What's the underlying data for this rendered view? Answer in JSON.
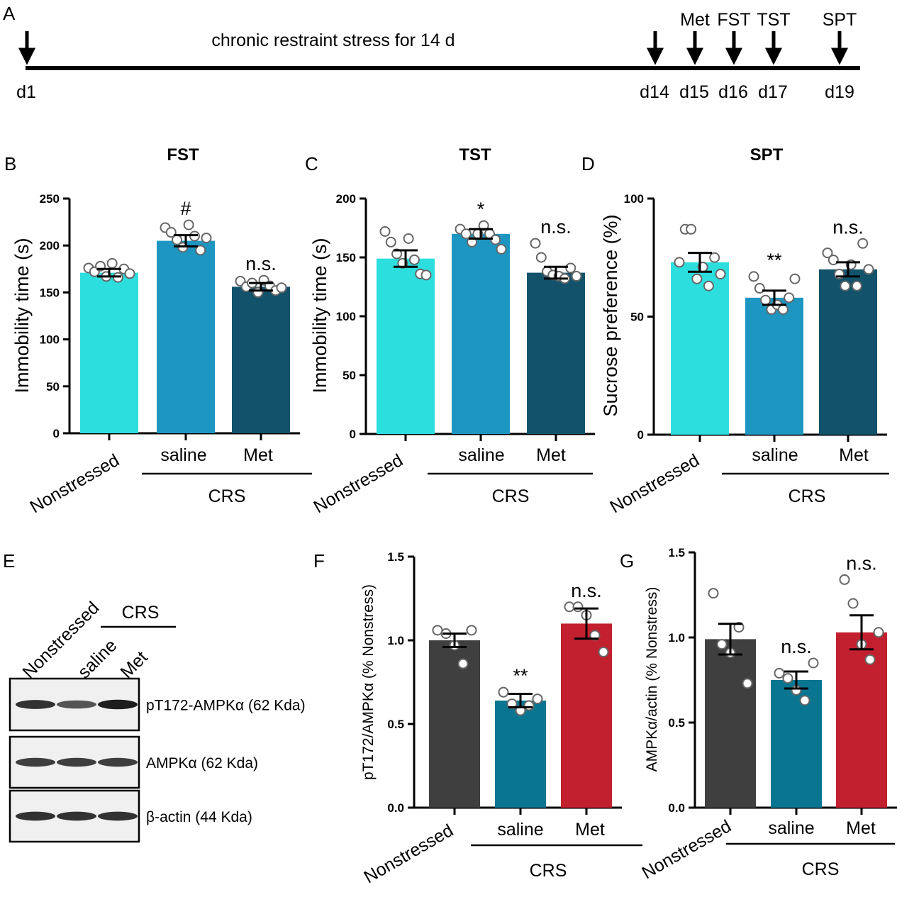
{
  "colors": {
    "nonstressed": "#2ddede",
    "saline_top": "#1e96c2",
    "met_top": "#12536b",
    "nonstressed_bottom": "#3f3f3f",
    "saline_bottom": "#0a7591",
    "met_bottom": "#c3202f"
  },
  "timeline": {
    "panel": "A",
    "label": "chronic restraint stress for 14 d",
    "events": [
      {
        "day": "d1",
        "test": ""
      },
      {
        "day": "d14",
        "test": ""
      },
      {
        "day": "d15",
        "test": "Met"
      },
      {
        "day": "d16",
        "test": "FST"
      },
      {
        "day": "d17",
        "test": "TST"
      },
      {
        "day": "d19",
        "test": "SPT"
      }
    ]
  },
  "blot": {
    "panel": "E",
    "group_label": "CRS",
    "lanes": [
      "Nonstressed",
      "saline",
      "Met"
    ],
    "rows": [
      {
        "label": "pT172-AMPKα (62 Kda)",
        "intensities": [
          0.85,
          0.7,
          0.95
        ]
      },
      {
        "label": "AMPKα (62 Kda)",
        "intensities": [
          0.8,
          0.8,
          0.8
        ]
      },
      {
        "label": "β-actin (44 Kda)",
        "intensities": [
          0.85,
          0.85,
          0.85
        ]
      }
    ]
  },
  "chart_data": [
    {
      "type": "bar",
      "panel": "B",
      "title": "FST",
      "ylabel": "Immobility time (s)",
      "ylim": [
        0,
        250
      ],
      "yticks": [
        0,
        50,
        100,
        150,
        200,
        250
      ],
      "categories": [
        "Nonstressed",
        "saline",
        "Met"
      ],
      "group_label": "CRS",
      "values": [
        171,
        205,
        156
      ],
      "sem": [
        4,
        6,
        4
      ],
      "significance": [
        "",
        "#",
        "n.s."
      ],
      "points": [
        [
          176,
          172,
          178,
          167,
          181,
          166,
          175,
          170
        ],
        [
          219,
          214,
          206,
          198,
          222,
          210,
          195,
          208
        ],
        [
          162,
          156,
          160,
          150,
          163,
          157,
          152,
          155
        ]
      ]
    },
    {
      "type": "bar",
      "panel": "C",
      "title": "TST",
      "ylabel": "Immobility time (s)",
      "ylim": [
        0,
        200
      ],
      "yticks": [
        0,
        50,
        100,
        150,
        200
      ],
      "categories": [
        "Nonstressed",
        "saline",
        "Met"
      ],
      "group_label": "CRS",
      "values": [
        149,
        170,
        137
      ],
      "sem": [
        7,
        4,
        5
      ],
      "significance": [
        "",
        "*",
        "n.s."
      ],
      "points": [
        [
          172,
          163,
          153,
          145,
          166,
          148,
          136,
          135
        ],
        [
          174,
          170,
          163,
          170,
          177,
          170,
          165,
          157
        ],
        [
          162,
          150,
          138,
          135,
          134,
          132,
          141,
          134
        ]
      ]
    },
    {
      "type": "bar",
      "panel": "D",
      "title": "SPT",
      "ylabel": "Sucrose preference (%)",
      "ylim": [
        0,
        100
      ],
      "yticks": [
        0,
        50,
        100
      ],
      "categories": [
        "Nonstressed",
        "saline",
        "Met"
      ],
      "group_label": "CRS",
      "values": [
        73,
        58,
        70
      ],
      "sem": [
        4,
        3,
        3
      ],
      "significance": [
        "",
        "**",
        "n.s."
      ],
      "points": [
        [
          73,
          87,
          87,
          66,
          71,
          63,
          75,
          68
        ],
        [
          67,
          62,
          57,
          53,
          55,
          53,
          58,
          66
        ],
        [
          77,
          74,
          68,
          63,
          72,
          63,
          81,
          70
        ]
      ]
    },
    {
      "type": "bar",
      "panel": "F",
      "title": "",
      "ylabel": "pT172/AMPKα (% Nonstress)",
      "ylim": [
        0,
        1.5
      ],
      "yticks": [
        0.0,
        0.5,
        1.0,
        1.5
      ],
      "categories": [
        "Nonstressed",
        "saline",
        "Met"
      ],
      "group_label": "CRS",
      "values": [
        1.0,
        0.64,
        1.1
      ],
      "sem": [
        0.04,
        0.04,
        0.09
      ],
      "significance": [
        "",
        "**",
        "n.s."
      ],
      "points": [
        [
          1.06,
          1.04,
          0.97,
          0.86,
          1.06
        ],
        [
          0.69,
          0.62,
          0.58,
          0.61,
          0.65
        ],
        [
          1.2,
          1.2,
          1.15,
          1.03,
          0.93
        ]
      ]
    },
    {
      "type": "bar",
      "panel": "G",
      "title": "",
      "ylabel": "AMPKα/actin (% Nonstress)",
      "ylim": [
        0,
        1.5
      ],
      "yticks": [
        0.0,
        0.5,
        1.0,
        1.5
      ],
      "categories": [
        "Nonstressed",
        "saline",
        "Met"
      ],
      "group_label": "CRS",
      "values": [
        0.99,
        0.75,
        1.03
      ],
      "sem": [
        0.09,
        0.05,
        0.1
      ],
      "significance": [
        "",
        "n.s.",
        "n.s."
      ],
      "points": [
        [
          1.26,
          0.96,
          0.91,
          1.06,
          0.73
        ],
        [
          0.79,
          0.76,
          0.69,
          0.63,
          0.85
        ],
        [
          1.34,
          1.2,
          0.96,
          0.87,
          1.03
        ]
      ]
    }
  ]
}
